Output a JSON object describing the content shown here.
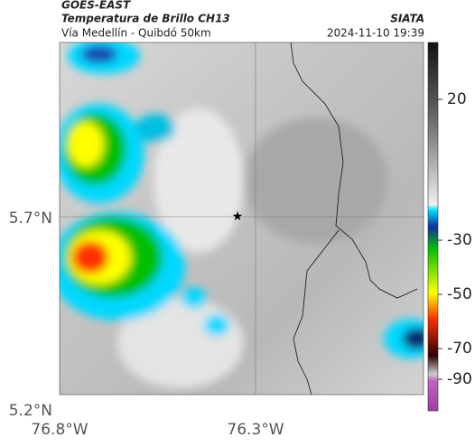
{
  "header": {
    "source": "GOES-EAST",
    "title": "Temperatura de Brillo CH13",
    "subtitle": "Vía Medellín - Quibdó 50km",
    "agency": "SIATA",
    "datetime": "2024-11-10 19:39"
  },
  "axes": {
    "latitudes": [
      "5.7°N",
      "5.2°N"
    ],
    "longitudes": [
      "76.8°W",
      "76.3°W"
    ]
  },
  "colorbar": {
    "ticks": [
      20,
      -30,
      -50,
      -70,
      -90
    ]
  }
}
